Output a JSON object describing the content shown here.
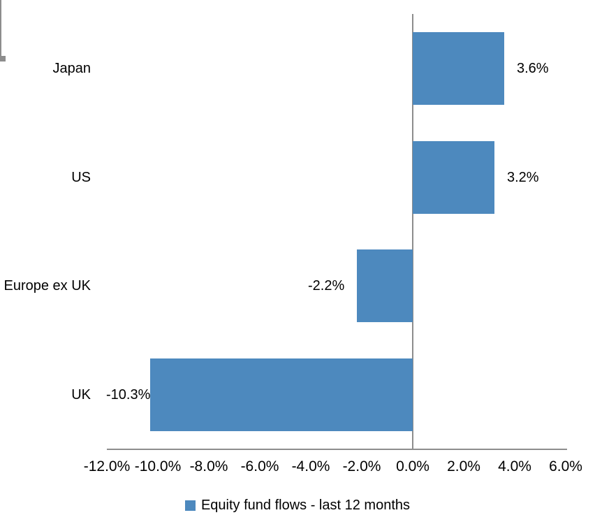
{
  "chart_data": {
    "type": "bar",
    "orientation": "horizontal",
    "title": "",
    "categories": [
      "Japan",
      "US",
      "Europe ex UK",
      "UK"
    ],
    "series": [
      {
        "name": "Equity fund flows - last 12 months",
        "values": [
          3.6,
          3.2,
          -2.2,
          -10.3
        ]
      }
    ],
    "data_labels": [
      "3.6%",
      "3.2%",
      "-2.2%",
      "-10.3%"
    ],
    "x_ticks": [
      {
        "value": -12,
        "label": "-12.0%"
      },
      {
        "value": -10,
        "label": "-10.0%"
      },
      {
        "value": -8,
        "label": "-8.0%"
      },
      {
        "value": -6,
        "label": "-6.0%"
      },
      {
        "value": -4,
        "label": "-4.0%"
      },
      {
        "value": -2,
        "label": "-2.0%"
      },
      {
        "value": 0,
        "label": "0.0%"
      },
      {
        "value": 2,
        "label": "2.0%"
      },
      {
        "value": 4,
        "label": "4.0%"
      },
      {
        "value": 6,
        "label": "6.0%"
      }
    ],
    "xlim": [
      -12,
      6
    ],
    "grid": false,
    "legend_position": "bottom",
    "colors": {
      "bar": "#4D89BE",
      "axis": "#8D8D8D",
      "text": "#000000"
    }
  },
  "legend": {
    "label": "Equity fund flows - last 12 months"
  }
}
